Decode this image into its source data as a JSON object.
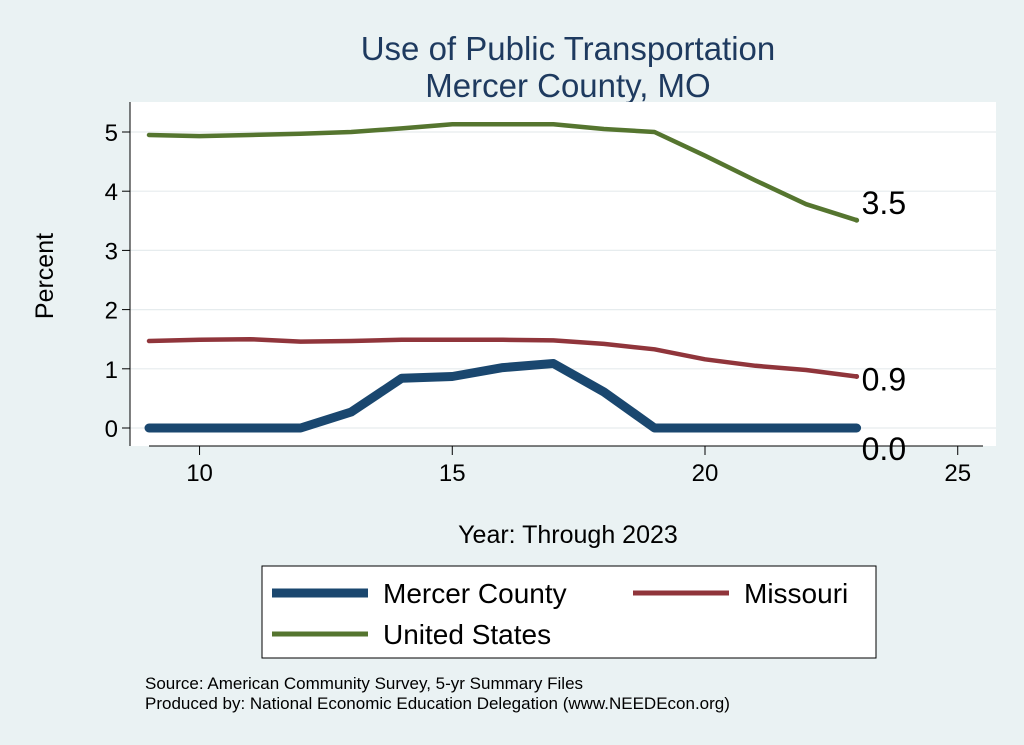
{
  "chart_data": {
    "type": "line",
    "title": [
      "Use of Public Transportation",
      "Mercer County, MO"
    ],
    "xlabel": "Year: Through 2023",
    "ylabel": "Percent",
    "xlim": [
      9,
      25.5
    ],
    "ylim": [
      0,
      5
    ],
    "xticks": [
      10,
      15,
      20,
      25
    ],
    "yticks": [
      0,
      1,
      2,
      3,
      4,
      5
    ],
    "grid": true,
    "legend_position": "bottom",
    "series": [
      {
        "name": "Mercer County",
        "color": "#1a476f",
        "x": [
          9,
          10,
          11,
          12,
          13,
          14,
          15,
          16,
          17,
          18,
          19,
          20,
          21,
          22,
          23
        ],
        "y": [
          0.0,
          0.0,
          0.0,
          0.0,
          0.27,
          0.84,
          0.87,
          1.02,
          1.09,
          0.61,
          0.0,
          0.0,
          0.0,
          0.0,
          0.0
        ],
        "end_label": "0.0"
      },
      {
        "name": "Missouri",
        "color": "#90353b",
        "x": [
          9,
          10,
          11,
          12,
          13,
          14,
          15,
          16,
          17,
          18,
          19,
          20,
          21,
          22,
          23
        ],
        "y": [
          1.47,
          1.49,
          1.5,
          1.46,
          1.47,
          1.49,
          1.49,
          1.49,
          1.48,
          1.42,
          1.33,
          1.16,
          1.05,
          0.98,
          0.87
        ],
        "end_label": "0.9"
      },
      {
        "name": "United States",
        "color": "#55752f",
        "x": [
          9,
          10,
          11,
          12,
          13,
          14,
          15,
          16,
          17,
          18,
          19,
          20,
          21,
          22,
          23
        ],
        "y": [
          4.95,
          4.93,
          4.95,
          4.97,
          5.0,
          5.06,
          5.13,
          5.13,
          5.13,
          5.05,
          5.0,
          4.6,
          4.18,
          3.78,
          3.51
        ],
        "end_label": "3.5"
      }
    ],
    "legend": [
      "Mercer County",
      "Missouri",
      "United States"
    ],
    "notes": [
      "Source: American Community Survey, 5-yr Summary Files",
      "Produced by: National Economic Education Delegation (www.NEEDEcon.org)"
    ]
  }
}
